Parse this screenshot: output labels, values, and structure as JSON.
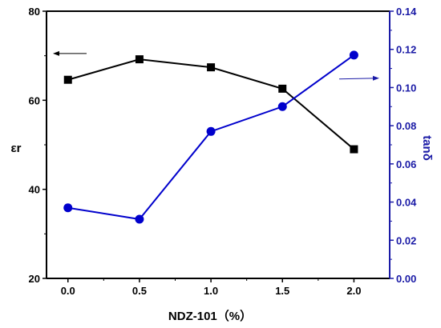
{
  "chart_data": {
    "type": "line",
    "xlabel": "NDZ-101（%）",
    "ylabel_left": "εr",
    "ylabel_right": "tanδ",
    "xlim": [
      -0.15,
      2.25
    ],
    "ylim_left": [
      20,
      80
    ],
    "ylim_right": [
      0,
      0.14
    ],
    "xticks": [
      "0.0",
      "0.5",
      "1.0",
      "1.5",
      "2.0"
    ],
    "yticks_left": [
      "20",
      "40",
      "60",
      "80"
    ],
    "yticks_right": [
      "0.00",
      "0.02",
      "0.04",
      "0.06",
      "0.08",
      "0.10",
      "0.12",
      "0.14"
    ],
    "x": [
      0.0,
      0.5,
      1.0,
      1.5,
      2.0
    ],
    "series": [
      {
        "axis": "left",
        "marker": "square",
        "color": "#000000",
        "values": [
          64.6,
          69.2,
          67.4,
          62.6,
          49.0
        ]
      },
      {
        "axis": "right",
        "marker": "circle",
        "color": "#0000cc",
        "values": [
          0.037,
          0.031,
          0.077,
          0.09,
          0.117
        ]
      }
    ],
    "grid": false,
    "colors": {
      "left_axis": "#000000",
      "right_axis": "#1a1aa6"
    }
  }
}
